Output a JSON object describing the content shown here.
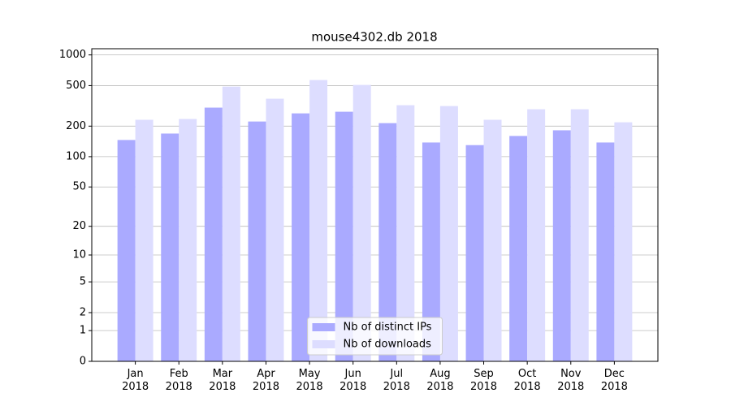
{
  "chart_data": {
    "type": "bar",
    "title": "mouse4302.db 2018",
    "categories": [
      "Jan\n2018",
      "Feb\n2018",
      "Mar\n2018",
      "Apr\n2018",
      "May\n2018",
      "Jun\n2018",
      "Jul\n2018",
      "Aug\n2018",
      "Sep\n2018",
      "Oct\n2018",
      "Nov\n2018",
      "Dec\n2018"
    ],
    "series": [
      {
        "name": "Nb of distinct IPs",
        "color": "#aaaaff",
        "values": [
          146,
          169,
          304,
          222,
          267,
          277,
          214,
          138,
          130,
          160,
          182,
          138
        ]
      },
      {
        "name": "Nb of downloads",
        "color": "#ddddff",
        "values": [
          231,
          235,
          489,
          372,
          567,
          508,
          321,
          315,
          231,
          293,
          293,
          218
        ]
      }
    ],
    "y_scale": "log1p",
    "ylim": [
      0,
      1150
    ],
    "yticks": [
      0,
      1,
      2,
      5,
      10,
      20,
      50,
      100,
      200,
      500,
      1000
    ],
    "grid": true,
    "legend": "lower center"
  }
}
